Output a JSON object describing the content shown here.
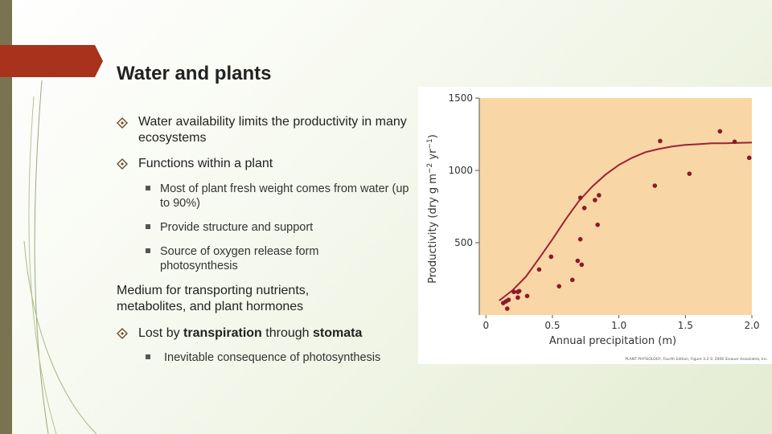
{
  "slide": {
    "title": "Water and plants",
    "point_1": "Water availability limits the productivity in many ecosystems",
    "point_2": "Functions within a plant",
    "point_2_subpoints": [
      "Most of plant fresh weight comes from water (up to 90%)",
      "Provide structure and support",
      "Source of oxygen release form photosynthesis"
    ],
    "paragraph": "Medium for transporting nutrients, metabolites, and plant hormones",
    "point_3_parts": [
      "Lost by ",
      "transpiration",
      " through ",
      "stomata"
    ],
    "point_3_subpoints": [
      "Inevitable consequence of photosynthesis"
    ]
  },
  "chart_data": {
    "type": "scatter",
    "xlabel": "Annual precipitation (m)",
    "ylabel_parts": [
      "Productivity (dry g m",
      "−2",
      " yr",
      "−1",
      ")"
    ],
    "credit": "PLANT PHYSIOLOGY, Fourth Edition, Figure 3.2 © 2006 Sinauer Associates, Inc.",
    "x": [
      0.13,
      0.15,
      0.17,
      0.16,
      0.21,
      0.24,
      0.25,
      0.24,
      0.31,
      0.4,
      0.49,
      0.55,
      0.65,
      0.69,
      0.71,
      0.72,
      0.71,
      0.74,
      0.82,
      0.85,
      0.84,
      1.27,
      1.31,
      1.53,
      1.76,
      1.87,
      1.98
    ],
    "y": [
      83,
      94,
      105,
      44,
      160,
      160,
      166,
      121,
      132,
      315,
      403,
      199,
      243,
      375,
      524,
      348,
      811,
      740,
      795,
      828,
      624,
      894,
      1203,
      977,
      1270,
      1198,
      1087
    ],
    "color": "#8b1a2b",
    "fit_curve": {
      "x": [
        0.1,
        0.2,
        0.3,
        0.4,
        0.5,
        0.6,
        0.7,
        0.8,
        0.9,
        1.0,
        1.1,
        1.2,
        1.3,
        1.4,
        1.5,
        1.6,
        1.7,
        1.8,
        1.9,
        2.0
      ],
      "y": [
        100,
        171,
        265,
        392,
        524,
        662,
        789,
        889,
        971,
        1038,
        1087,
        1126,
        1148,
        1165,
        1176,
        1181,
        1187,
        1188,
        1190,
        1192
      ],
      "color": "#9b2335"
    },
    "background": "#f9d6a6",
    "xlim": [
      -0.05,
      2.0
    ],
    "ylim": [
      0,
      1500
    ],
    "xticks": [
      0,
      0.5,
      {
        "value": 1,
        "label": "1.0"
      },
      1.5,
      {
        "value": 2,
        "label": "2.0"
      }
    ],
    "yticks": [
      500,
      1000,
      1500
    ]
  }
}
